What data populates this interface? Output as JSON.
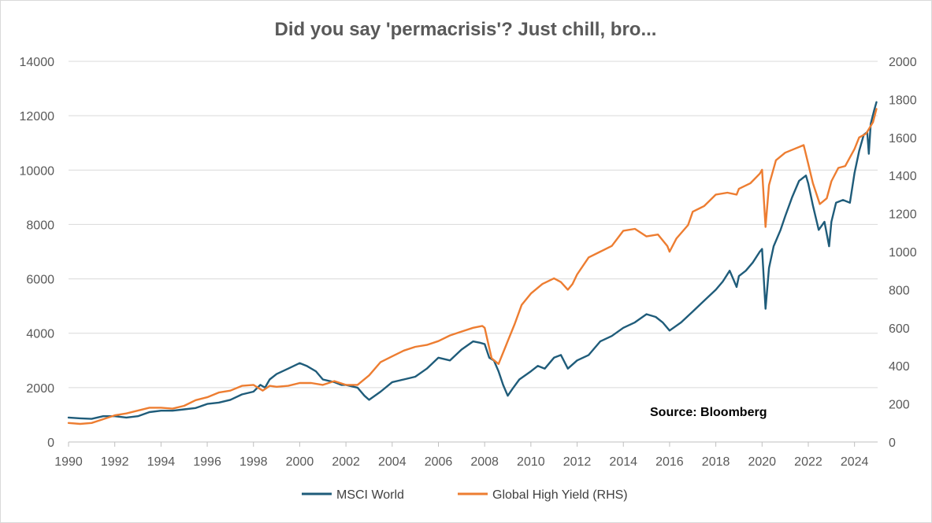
{
  "chart_data": {
    "type": "line",
    "title": "Did you say 'permacrisis'? Just chill, bro...",
    "annotation": "Source: Bloomberg",
    "xlabel": "",
    "ylabel": "",
    "x_range": [
      1990,
      2025
    ],
    "x_ticks": [
      "1990",
      "1992",
      "1994",
      "1996",
      "1998",
      "2000",
      "2002",
      "2004",
      "2006",
      "2008",
      "2010",
      "2012",
      "2014",
      "2016",
      "2018",
      "2020",
      "2022",
      "2024"
    ],
    "y_left": {
      "range": [
        0,
        14000
      ],
      "ticks": [
        "0",
        "2000",
        "4000",
        "6000",
        "8000",
        "10000",
        "12000",
        "14000"
      ]
    },
    "y_right": {
      "range": [
        0,
        2000
      ],
      "ticks": [
        "0",
        "200",
        "400",
        "600",
        "800",
        "1000",
        "1200",
        "1400",
        "1600",
        "1800",
        "2000"
      ]
    },
    "grid": true,
    "legend_position": "bottom",
    "series": [
      {
        "name": "MSCI World",
        "axis": "left",
        "color": "#1f5c7a",
        "x": [
          1990.0,
          1990.5,
          1991.0,
          1991.5,
          1992.0,
          1992.5,
          1993.0,
          1993.5,
          1994.0,
          1994.5,
          1995.0,
          1995.5,
          1996.0,
          1996.5,
          1997.0,
          1997.5,
          1998.0,
          1998.3,
          1998.5,
          1998.7,
          1999.0,
          1999.5,
          2000.0,
          2000.3,
          2000.7,
          2001.0,
          2001.5,
          2001.8,
          2002.0,
          2002.5,
          2002.8,
          2003.0,
          2003.5,
          2004.0,
          2004.5,
          2005.0,
          2005.5,
          2006.0,
          2006.5,
          2007.0,
          2007.5,
          2007.8,
          2008.0,
          2008.2,
          2008.4,
          2008.6,
          2008.8,
          2009.0,
          2009.2,
          2009.5,
          2010.0,
          2010.3,
          2010.6,
          2011.0,
          2011.3,
          2011.6,
          2012.0,
          2012.5,
          2013.0,
          2013.5,
          2014.0,
          2014.5,
          2015.0,
          2015.4,
          2015.7,
          2016.0,
          2016.5,
          2017.0,
          2017.5,
          2018.0,
          2018.3,
          2018.6,
          2018.9,
          2019.0,
          2019.3,
          2019.6,
          2019.9,
          2020.0,
          2020.15,
          2020.3,
          2020.5,
          2020.8,
          2021.0,
          2021.3,
          2021.6,
          2021.9,
          2022.0,
          2022.2,
          2022.45,
          2022.7,
          2022.9,
          2023.0,
          2023.2,
          2023.5,
          2023.8,
          2024.0,
          2024.2,
          2024.4,
          2024.55,
          2024.62,
          2024.7,
          2024.85,
          2024.95
        ],
        "values": [
          900,
          870,
          850,
          950,
          950,
          900,
          950,
          1100,
          1150,
          1150,
          1200,
          1250,
          1400,
          1450,
          1550,
          1750,
          1850,
          2100,
          2000,
          2300,
          2500,
          2700,
          2900,
          2800,
          2600,
          2300,
          2200,
          2100,
          2100,
          2000,
          1700,
          1550,
          1850,
          2200,
          2300,
          2400,
          2700,
          3100,
          3000,
          3400,
          3700,
          3650,
          3600,
          3100,
          3000,
          2600,
          2100,
          1700,
          1950,
          2300,
          2600,
          2800,
          2700,
          3100,
          3200,
          2700,
          3000,
          3200,
          3700,
          3900,
          4200,
          4400,
          4700,
          4600,
          4400,
          4100,
          4400,
          4800,
          5200,
          5600,
          5900,
          6300,
          5700,
          6100,
          6300,
          6600,
          7000,
          7100,
          4900,
          6400,
          7200,
          7800,
          8300,
          9000,
          9600,
          9800,
          9500,
          8700,
          7800,
          8100,
          7200,
          8100,
          8800,
          8900,
          8800,
          9900,
          10700,
          11300,
          11400,
          10600,
          11700,
          12200,
          12500
        ]
      },
      {
        "name": "Global High Yield (RHS)",
        "axis": "right",
        "color": "#ed7d31",
        "x": [
          1990.0,
          1990.5,
          1991.0,
          1991.5,
          1992.0,
          1992.5,
          1993.0,
          1993.5,
          1994.0,
          1994.5,
          1995.0,
          1995.5,
          1996.0,
          1996.5,
          1997.0,
          1997.5,
          1998.0,
          1998.4,
          1998.7,
          1999.0,
          1999.5,
          2000.0,
          2000.5,
          2001.0,
          2001.5,
          2002.0,
          2002.5,
          2003.0,
          2003.5,
          2004.0,
          2004.5,
          2005.0,
          2005.5,
          2006.0,
          2006.5,
          2007.0,
          2007.5,
          2007.9,
          2008.0,
          2008.3,
          2008.6,
          2008.9,
          2009.0,
          2009.3,
          2009.6,
          2010.0,
          2010.5,
          2011.0,
          2011.3,
          2011.6,
          2011.8,
          2012.0,
          2012.5,
          2013.0,
          2013.5,
          2014.0,
          2014.5,
          2015.0,
          2015.5,
          2015.9,
          2016.0,
          2016.3,
          2016.8,
          2017.0,
          2017.5,
          2018.0,
          2018.5,
          2018.9,
          2019.0,
          2019.5,
          2019.9,
          2020.0,
          2020.15,
          2020.3,
          2020.6,
          2021.0,
          2021.4,
          2021.8,
          2022.0,
          2022.2,
          2022.5,
          2022.8,
          2023.0,
          2023.3,
          2023.6,
          2024.0,
          2024.2,
          2024.5,
          2024.8,
          2024.95
        ],
        "values": [
          100,
          95,
          100,
          120,
          140,
          150,
          165,
          180,
          180,
          175,
          190,
          220,
          235,
          260,
          270,
          295,
          300,
          270,
          295,
          290,
          295,
          310,
          310,
          300,
          320,
          300,
          300,
          350,
          420,
          450,
          480,
          500,
          510,
          530,
          560,
          580,
          600,
          610,
          600,
          440,
          410,
          500,
          530,
          620,
          720,
          780,
          830,
          860,
          840,
          800,
          830,
          880,
          970,
          1000,
          1030,
          1110,
          1120,
          1080,
          1090,
          1030,
          1000,
          1070,
          1140,
          1210,
          1240,
          1300,
          1310,
          1300,
          1330,
          1360,
          1410,
          1430,
          1130,
          1350,
          1480,
          1520,
          1540,
          1560,
          1460,
          1360,
          1250,
          1280,
          1370,
          1440,
          1450,
          1540,
          1600,
          1620,
          1680,
          1750
        ]
      }
    ]
  }
}
